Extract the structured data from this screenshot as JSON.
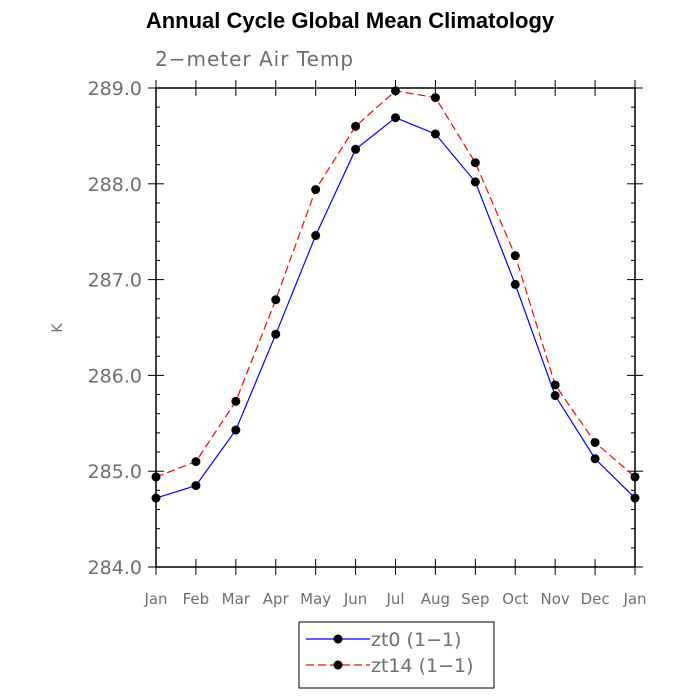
{
  "chart_data": {
    "type": "line",
    "title": "Annual Cycle Global Mean Climatology",
    "subtitle": "2−meter Air Temp",
    "xlabel": "",
    "ylabel": "K",
    "categories": [
      "Jan",
      "Feb",
      "Mar",
      "Apr",
      "May",
      "Jun",
      "Jul",
      "Aug",
      "Sep",
      "Oct",
      "Nov",
      "Dec",
      "Jan"
    ],
    "ylim": [
      284.0,
      289.0
    ],
    "yticks": [
      "284.0",
      "285.0",
      "286.0",
      "287.0",
      "288.0",
      "289.0"
    ],
    "series": [
      {
        "name": "zt0 (1−1)",
        "color": "#0000ff",
        "dash": "solid",
        "values": [
          284.72,
          284.85,
          285.43,
          286.43,
          287.46,
          288.36,
          288.69,
          288.52,
          288.02,
          286.95,
          285.79,
          285.13,
          284.72
        ]
      },
      {
        "name": "zt14 (1−1)",
        "color": "#ff0000",
        "dash": "dashed",
        "values": [
          284.94,
          285.1,
          285.73,
          286.79,
          287.94,
          288.6,
          288.97,
          288.9,
          288.22,
          287.25,
          285.9,
          285.3,
          284.94
        ]
      }
    ],
    "grid": false,
    "legend": "bottom-center"
  }
}
